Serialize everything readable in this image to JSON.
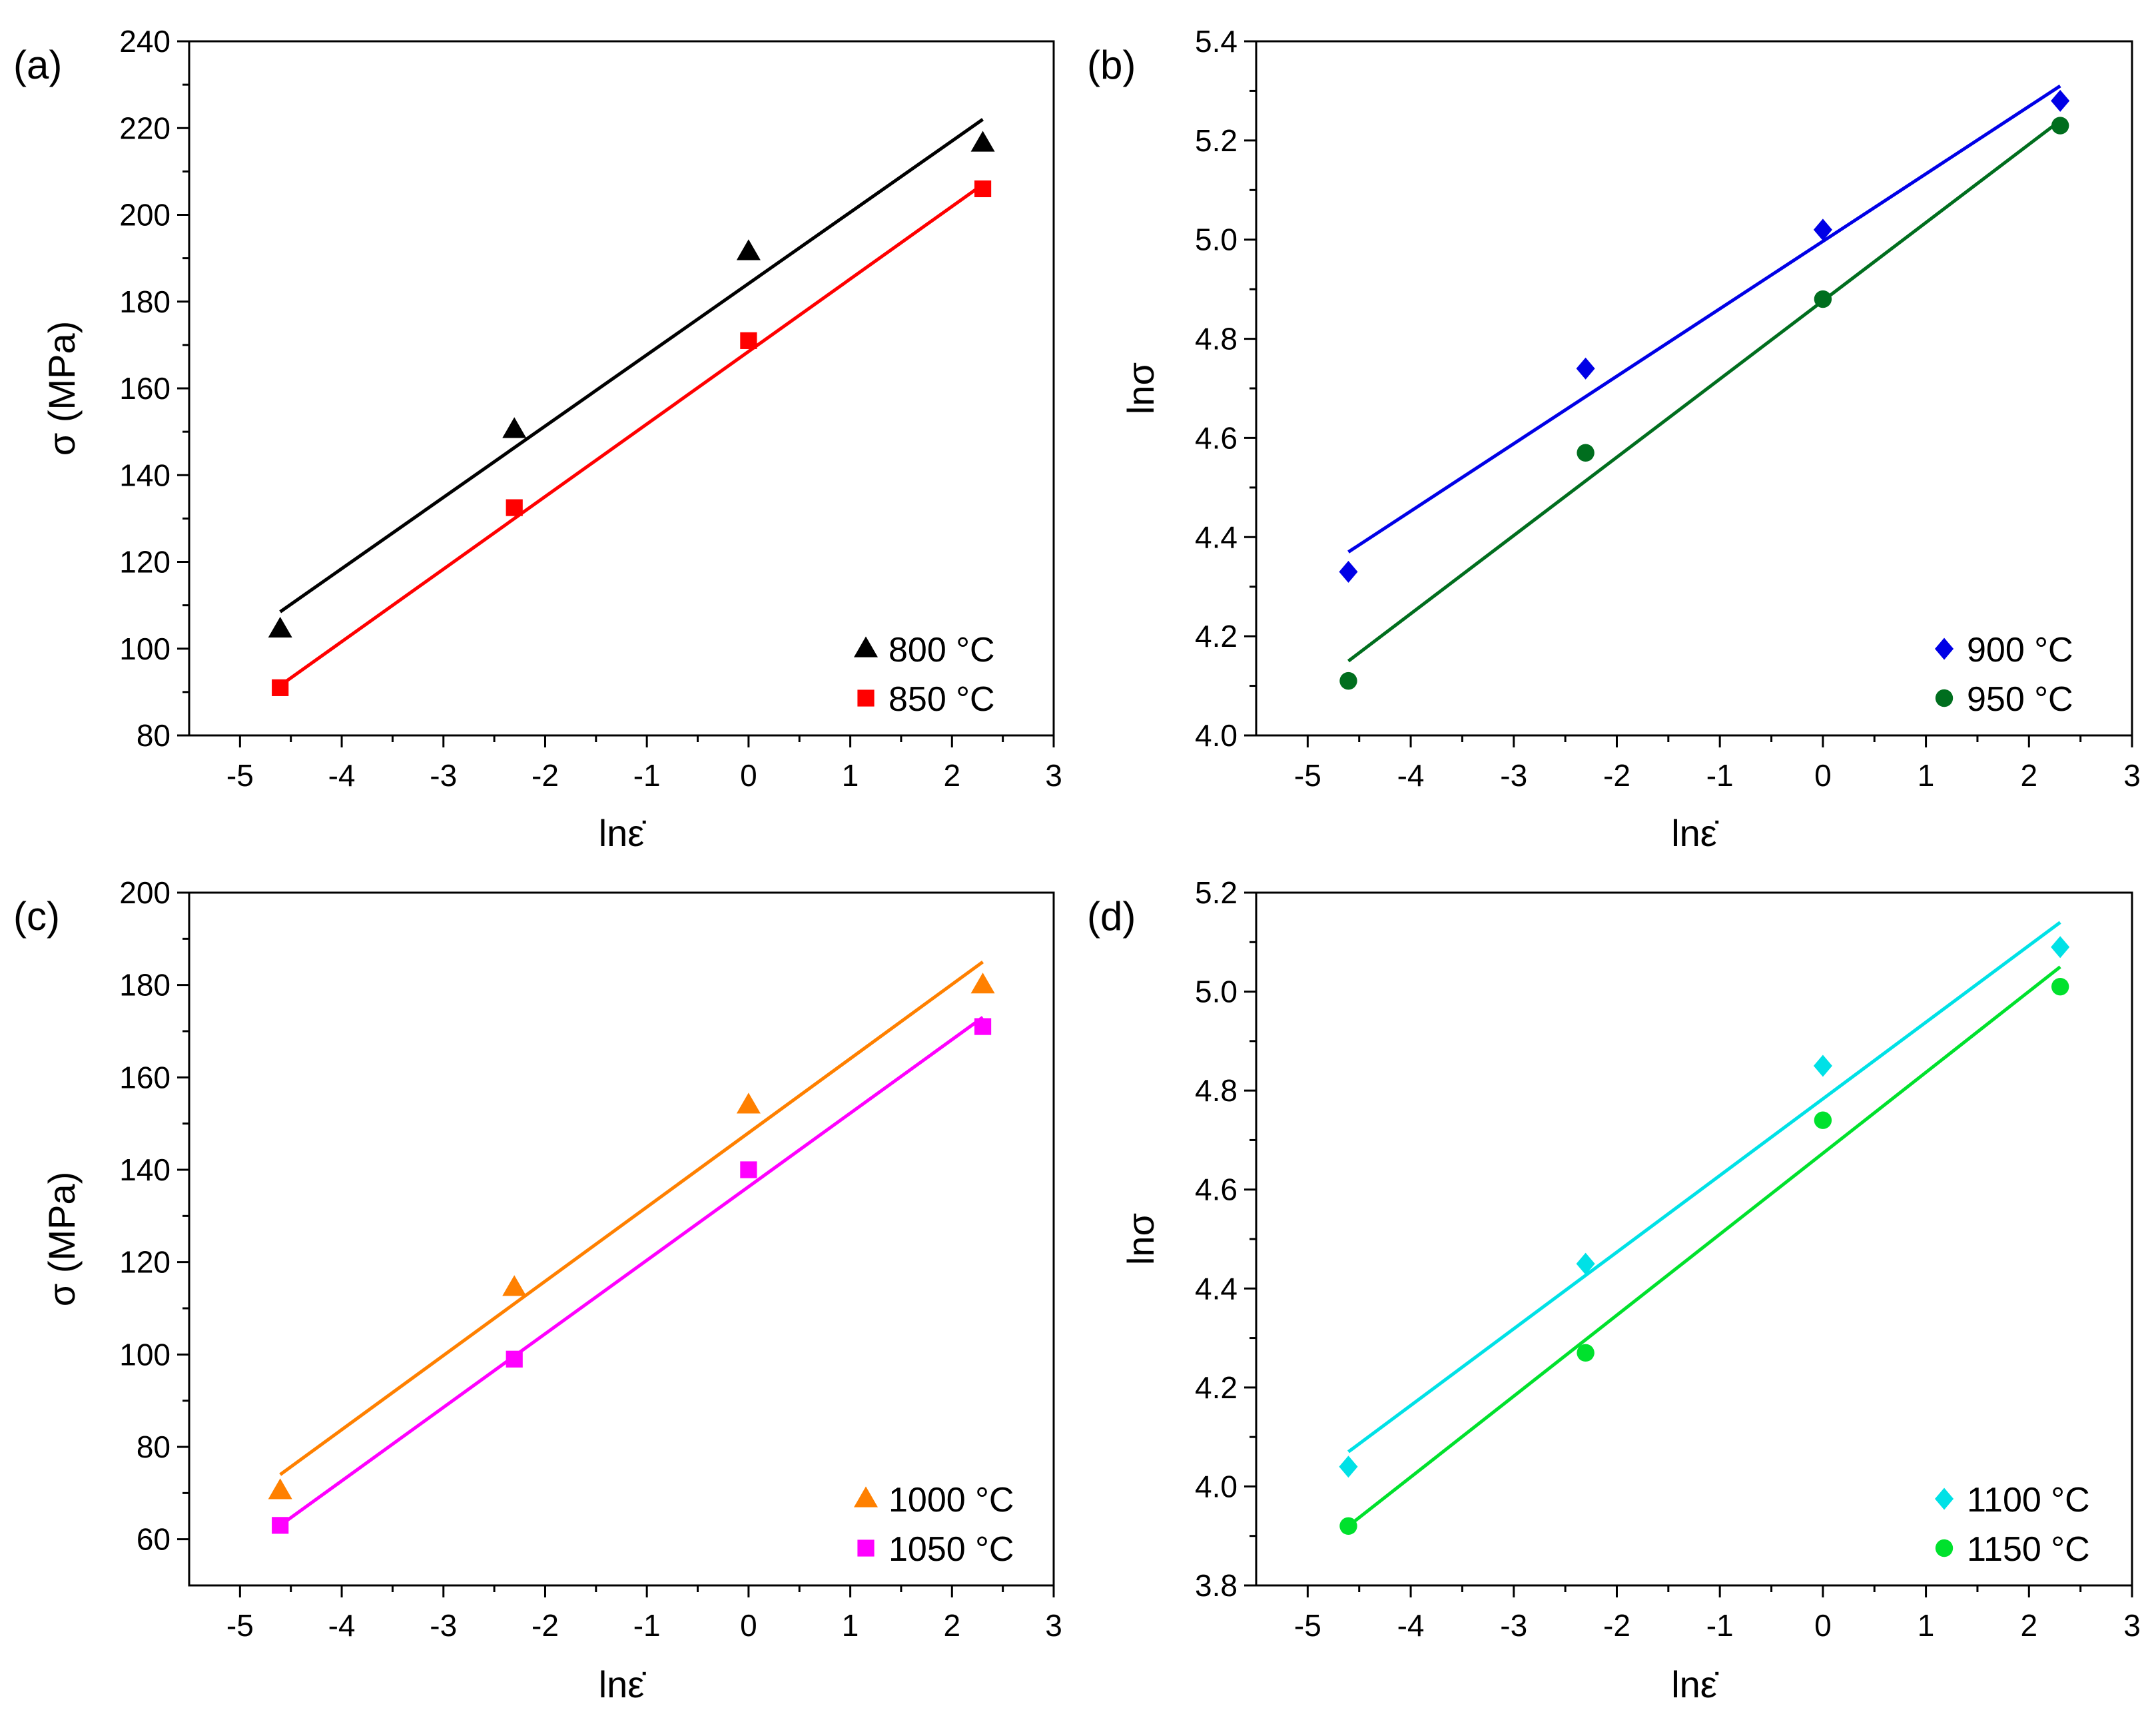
{
  "chart_data": [
    {
      "panel_label": "(a)",
      "type": "scatter",
      "xlabel": "lnε̇",
      "ylabel": "σ (MPa)",
      "xlim": [
        -5.5,
        3
      ],
      "ylim": [
        80,
        240
      ],
      "xticks": [
        -5,
        -4,
        -3,
        -2,
        -1,
        0,
        1,
        2,
        3
      ],
      "yticks": [
        80,
        100,
        120,
        140,
        160,
        180,
        200,
        220,
        240
      ],
      "ytick_decimals": 0,
      "legend_position": "bottom-right",
      "series": [
        {
          "name": "800 °C",
          "marker": "triangle",
          "color": "#000000",
          "x": [
            -4.605,
            -2.303,
            0,
            2.303
          ],
          "y": [
            104.5,
            150.5,
            191.5,
            216.5
          ],
          "fit": {
            "x": [
              -4.605,
              2.303
            ],
            "y": [
              108.5,
              222
            ]
          }
        },
        {
          "name": "850 °C",
          "marker": "square",
          "color": "#ff0000",
          "x": [
            -4.605,
            -2.303,
            0,
            2.303
          ],
          "y": [
            91,
            132.5,
            171,
            206
          ],
          "fit": {
            "x": [
              -4.605,
              2.303
            ],
            "y": [
              91.5,
              207
            ]
          }
        }
      ]
    },
    {
      "panel_label": "(b)",
      "type": "scatter",
      "xlabel": "lnε̇",
      "ylabel": "lnσ",
      "xlim": [
        -5.5,
        3
      ],
      "ylim": [
        4.0,
        5.4
      ],
      "xticks": [
        -5,
        -4,
        -3,
        -2,
        -1,
        0,
        1,
        2,
        3
      ],
      "yticks": [
        4.0,
        4.2,
        4.4,
        4.6,
        4.8,
        5.0,
        5.2,
        5.4
      ],
      "ytick_decimals": 1,
      "legend_position": "bottom-right",
      "series": [
        {
          "name": "900 °C",
          "marker": "diamond",
          "color": "#0000e6",
          "x": [
            -4.605,
            -2.303,
            0,
            2.303
          ],
          "y": [
            4.33,
            4.74,
            5.02,
            5.28
          ],
          "fit": {
            "x": [
              -4.605,
              2.303
            ],
            "y": [
              4.37,
              5.31
            ]
          }
        },
        {
          "name": "950 °C",
          "marker": "circle",
          "color": "#006e1e",
          "x": [
            -4.605,
            -2.303,
            0,
            2.303
          ],
          "y": [
            4.11,
            4.57,
            4.88,
            5.23
          ],
          "fit": {
            "x": [
              -4.605,
              2.303
            ],
            "y": [
              4.15,
              5.24
            ]
          }
        }
      ]
    },
    {
      "panel_label": "(c)",
      "type": "scatter",
      "xlabel": "lnε̇",
      "ylabel": "σ (MPa)",
      "xlim": [
        -5.5,
        3
      ],
      "ylim": [
        50,
        200
      ],
      "xticks": [
        -5,
        -4,
        -3,
        -2,
        -1,
        0,
        1,
        2,
        3
      ],
      "yticks": [
        60,
        80,
        100,
        120,
        140,
        160,
        180,
        200
      ],
      "ytick_decimals": 0,
      "legend_position": "bottom-right",
      "series": [
        {
          "name": "1000 °C",
          "marker": "triangle",
          "color": "#ff8000",
          "x": [
            -4.605,
            -2.303,
            0,
            2.303
          ],
          "y": [
            70.5,
            114.5,
            154,
            180
          ],
          "fit": {
            "x": [
              -4.605,
              2.303
            ],
            "y": [
              74,
              185
            ]
          }
        },
        {
          "name": "1050 °C",
          "marker": "square",
          "color": "#ff00ff",
          "x": [
            -4.605,
            -2.303,
            0,
            2.303
          ],
          "y": [
            63,
            99,
            140,
            171
          ],
          "fit": {
            "x": [
              -4.605,
              2.303
            ],
            "y": [
              63,
              173
            ]
          }
        }
      ]
    },
    {
      "panel_label": "(d)",
      "type": "scatter",
      "xlabel": "lnε̇",
      "ylabel": "lnσ",
      "xlim": [
        -5.5,
        3
      ],
      "ylim": [
        3.8,
        5.2
      ],
      "xticks": [
        -5,
        -4,
        -3,
        -2,
        -1,
        0,
        1,
        2,
        3
      ],
      "yticks": [
        3.8,
        4.0,
        4.2,
        4.4,
        4.6,
        4.8,
        5.0,
        5.2
      ],
      "ytick_decimals": 1,
      "legend_position": "bottom-right",
      "series": [
        {
          "name": "1100 °C",
          "marker": "diamond",
          "color": "#00e1e6",
          "x": [
            -4.605,
            -2.303,
            0,
            2.303
          ],
          "y": [
            4.04,
            4.45,
            4.85,
            5.09
          ],
          "fit": {
            "x": [
              -4.605,
              2.303
            ],
            "y": [
              4.07,
              5.14
            ]
          }
        },
        {
          "name": "1150 °C",
          "marker": "circle",
          "color": "#00e12d",
          "x": [
            -4.605,
            -2.303,
            0,
            2.303
          ],
          "y": [
            3.92,
            4.27,
            4.74,
            5.01
          ],
          "fit": {
            "x": [
              -4.605,
              2.303
            ],
            "y": [
              3.92,
              5.05
            ]
          }
        }
      ]
    }
  ]
}
